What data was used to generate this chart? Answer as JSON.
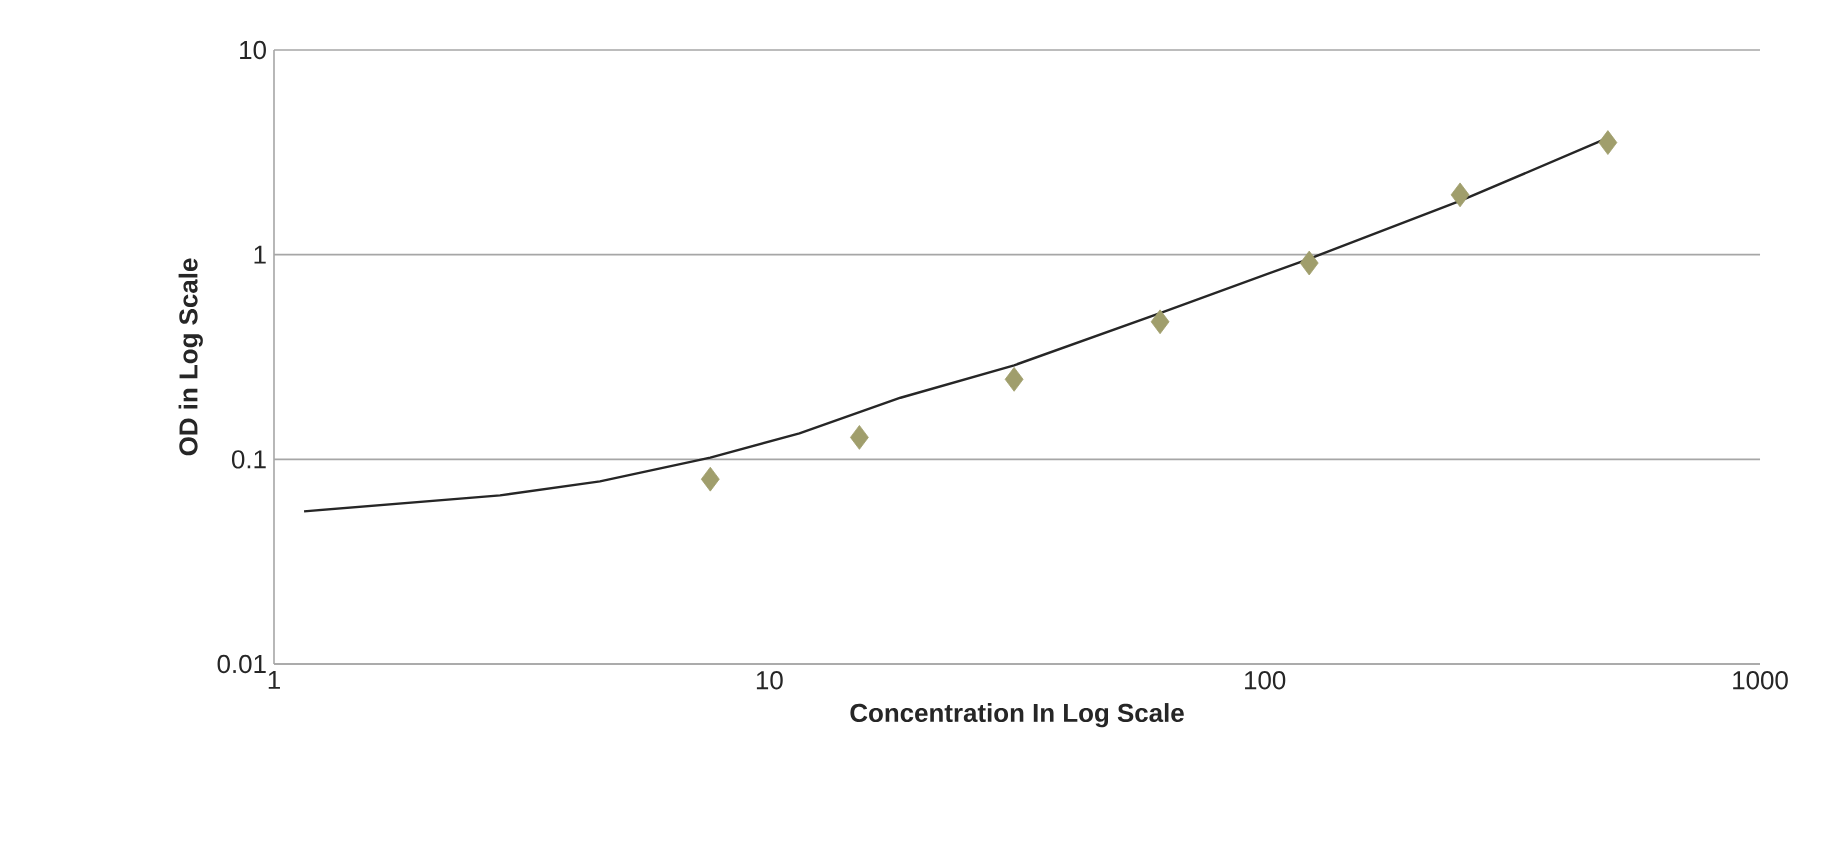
{
  "chart_data": {
    "type": "scatter",
    "xlabel": "Concentration In Log Scale",
    "ylabel": "OD in Log Scale",
    "log": "xy",
    "grid": "y",
    "xlim": [
      1,
      1000
    ],
    "ylim": [
      0.01,
      10
    ],
    "xticks": [
      1,
      10,
      100,
      1000
    ],
    "yticks": [
      0.01,
      0.1,
      1,
      10
    ],
    "series": [
      {
        "marker": "diamond",
        "color": "#a09e6c",
        "x": [
          7.6,
          15.2,
          31.2,
          61.5,
          123,
          248,
          493
        ],
        "values": [
          0.08,
          0.128,
          0.246,
          0.47,
          0.91,
          1.96,
          3.53
        ]
      },
      {
        "type": "line",
        "marker": "none",
        "line_style": "solid",
        "color": "#262626",
        "x": [
          1.15,
          2.86,
          4.55,
          7.6,
          11.5,
          18.4,
          31.2,
          61.5,
          123,
          248,
          493
        ],
        "values": [
          0.0557,
          0.0667,
          0.078,
          0.102,
          0.134,
          0.2,
          0.288,
          0.518,
          0.955,
          1.83,
          3.72
        ]
      }
    ]
  }
}
